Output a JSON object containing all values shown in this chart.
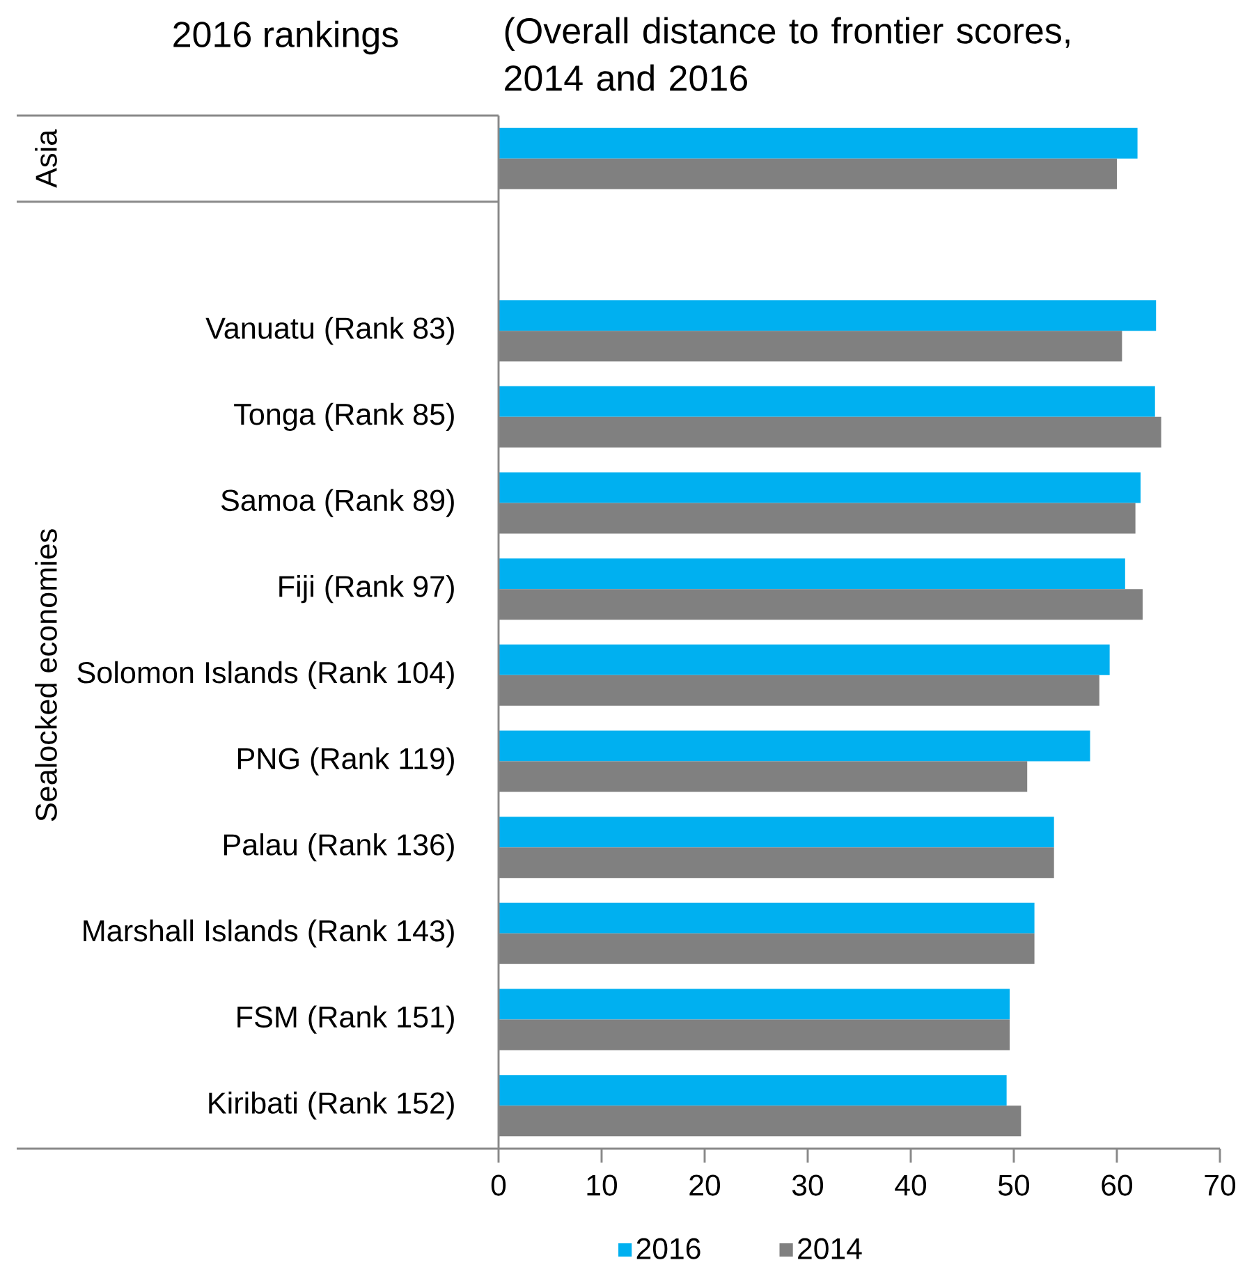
{
  "chart_data": {
    "type": "bar",
    "orientation": "horizontal",
    "title": "(Overall distance to frontier scores, 2014 and 2016",
    "ylabel": "2016 rankings",
    "annotations": [
      "Asia",
      "Sealocked economies"
    ],
    "categories": [
      null,
      null,
      "Vanuatu (Rank 83)",
      "Tonga (Rank 85)",
      "Samoa (Rank 89)",
      "Fiji (Rank 97)",
      "Solomon Islands (Rank 104)",
      "PNG (Rank 119)",
      "Palau (Rank 136)",
      "Marshall Islands (Rank 143)",
      "FSM (Rank 151)",
      "Kiribati (Rank 152)"
    ],
    "series": [
      {
        "name": "2016",
        "color": "#00b0f0",
        "values": [
          62.0,
          null,
          63.8,
          63.7,
          62.3,
          60.8,
          59.3,
          57.4,
          53.9,
          52.0,
          49.6,
          49.3
        ]
      },
      {
        "name": "2014",
        "color": "#808080",
        "values": [
          60.0,
          null,
          60.5,
          64.3,
          61.8,
          62.5,
          58.3,
          51.3,
          53.9,
          52.0,
          49.6,
          50.7
        ]
      }
    ],
    "xlim": [
      0,
      70
    ],
    "xticks": [
      0,
      10,
      20,
      30,
      40,
      50,
      60,
      70
    ],
    "legend": "bottom"
  }
}
